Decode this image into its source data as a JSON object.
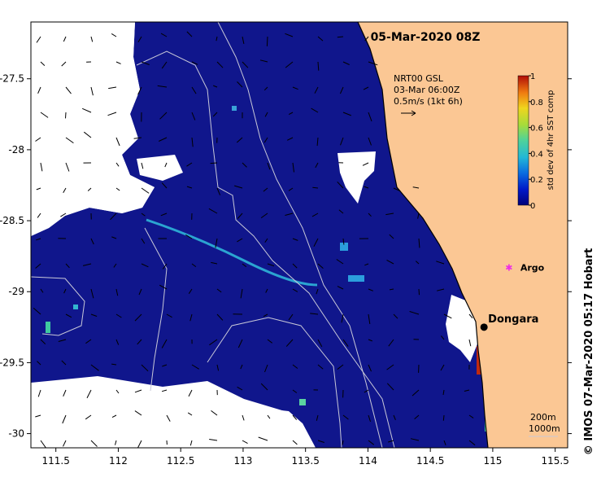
{
  "map": {
    "title": "05-Mar-2020 08Z",
    "credit": "©  IMOS 07-Mar-2020 05:17 Hobart",
    "x_ticks": [
      "111.5",
      "112",
      "112.5",
      "113",
      "113.5",
      "114",
      "114.5",
      "115",
      "115.5"
    ],
    "x_tick_values": [
      111.5,
      112,
      112.5,
      113,
      113.5,
      114,
      114.5,
      115,
      115.5
    ],
    "y_ticks": [
      "-27.5",
      "-28",
      "-28.5",
      "-29",
      "-29.5",
      "-30"
    ],
    "y_tick_values": [
      -27.5,
      -28,
      -28.5,
      -29,
      -29.5,
      -30
    ],
    "lon_range": [
      111.3,
      115.6
    ],
    "lat_range": [
      -30.1,
      -27.1
    ],
    "colors": {
      "land": "#fbc794",
      "ocean": "#10168c",
      "dongara_marker": "#000000",
      "argo_marker": "#ee2ee6"
    }
  },
  "current_key": {
    "line1": "NRT00 GSL",
    "line2": "03-Mar 06:00Z",
    "line3": "0.5m/s (1kt 6h)"
  },
  "places": {
    "dongara": "Dongara",
    "dongara_lon": 114.93,
    "dongara_lat": -29.25,
    "argo": "Argo",
    "argo_lon": 115.13,
    "argo_lat": -28.83
  },
  "colorbar": {
    "label": "std dev of 4hr SST comp",
    "ticks": [
      "0",
      "0.2",
      "0.4",
      "0.6",
      "0.8",
      "1"
    ],
    "tick_values": [
      0,
      0.2,
      0.4,
      0.6,
      0.8,
      1
    ],
    "range": [
      0,
      1
    ]
  },
  "scale": {
    "label1": "200m",
    "label2": "1000m"
  }
}
